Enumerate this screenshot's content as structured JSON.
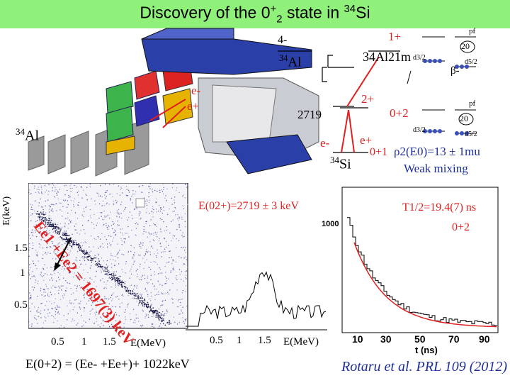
{
  "title": {
    "prefix": "Discovery of the 0",
    "sup": "+",
    "sub": "2",
    "mid": " state in ",
    "mass": "34",
    "element": "Si"
  },
  "setup": {
    "nucleus_mass": "34",
    "nucleus_el": "Al",
    "e_minus": "e-",
    "e_plus": "e+"
  },
  "level_scheme": {
    "al_mass": "34",
    "al_el": "Al",
    "al_spin": "4-",
    "al21m": "34Al21m",
    "al21m_spin": "1+",
    "beta": "β-",
    "si_mass": "34",
    "si_el": "Si",
    "level_2719": "2719",
    "level_2plus": "2+",
    "level_0plus2": "0+2",
    "level_0plus1": "0+1",
    "e_minus": "e-",
    "e_plus": "e+",
    "shell_pf_top": "pf",
    "shell_20_top": "20",
    "shell_d32_top": "d3/2",
    "shell_d52_top": "d5/2",
    "shell_pf_bot": "pf",
    "shell_20_bot": "20",
    "shell_d32_bot": "d3/2",
    "shell_d52_bot": "d5/2",
    "rho_text": "ρ2(E0)=13 ± 1mu",
    "weak_mixing": "Weak mixing"
  },
  "scatter_plot": {
    "ylabel": "E(keV)",
    "yticks": [
      "1.5",
      "1",
      "0.5"
    ],
    "xticks": [
      "0.5",
      "1",
      "1.5"
    ],
    "xlabel": "E(MeV)",
    "diag_label": "Ee1 +Ee2 = 1697(3) keV"
  },
  "projection_plot": {
    "label": "E(02+)=2719 ± 3 keV",
    "xticks": [
      "0.5",
      "1",
      "1.5"
    ],
    "xlabel": "E(MeV)"
  },
  "decay_plot": {
    "half_life": "T1/2=19.4(7) ns",
    "state_label": "0+2",
    "ytick": "1000",
    "xticks": [
      "10",
      "30",
      "50",
      "70",
      "90"
    ],
    "xlabel": "t (ns)"
  },
  "formula": "E(0+2) = (Ee- +Ee+)+ 1022keV",
  "citation": "Rotaru et al. PRL 109 (2012)"
}
